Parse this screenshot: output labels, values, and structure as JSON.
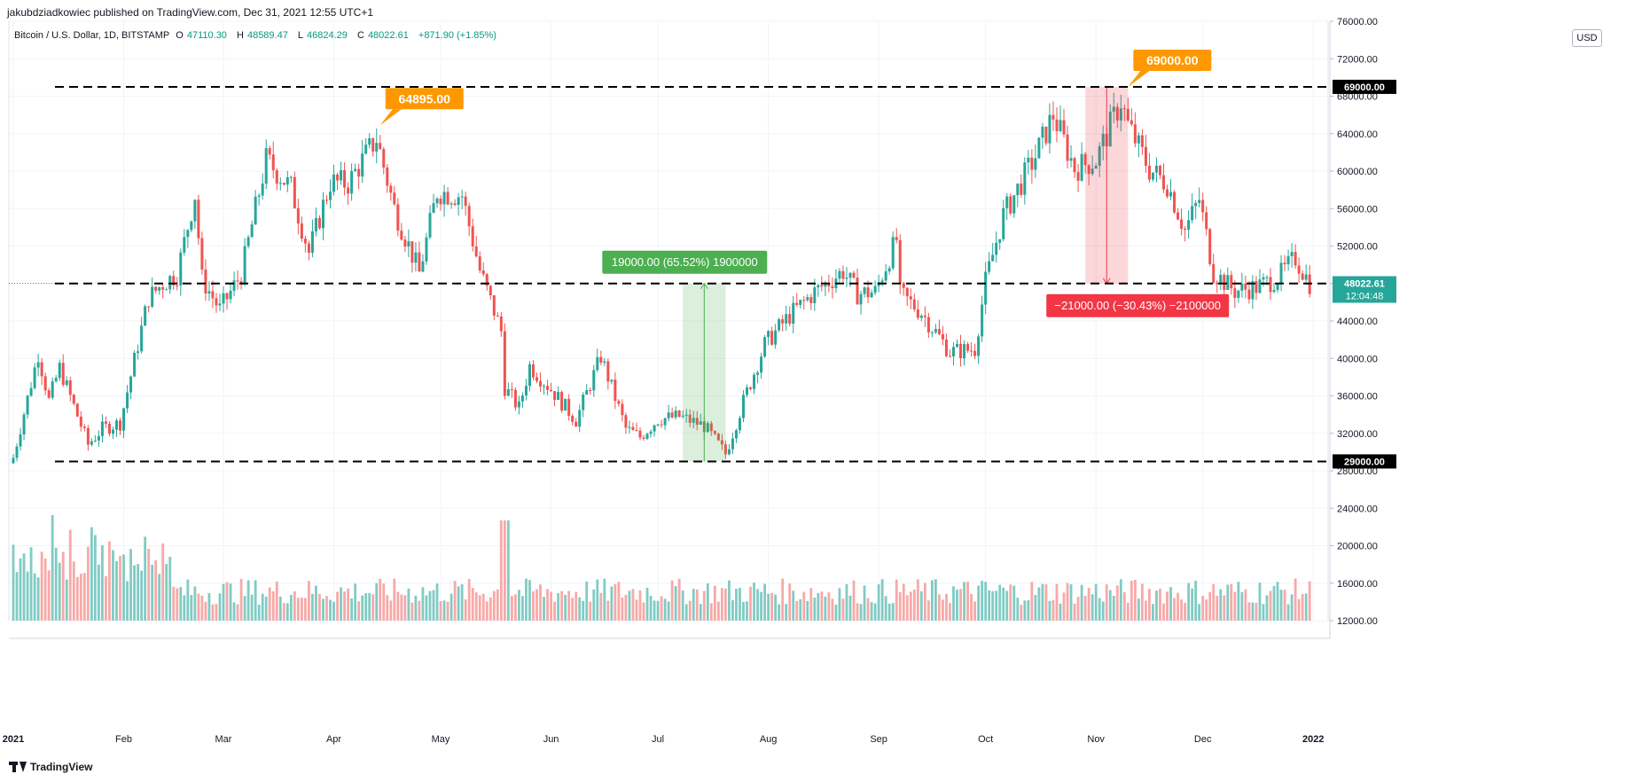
{
  "header": {
    "publisher": "jakubdziadkowiec published on TradingView.com, Dec 31, 2021 12:55 UTC+1"
  },
  "legend": {
    "symbol": "Bitcoin / U.S. Dollar, 1D, BITSTAMP",
    "o_label": "O",
    "o": "47110.30",
    "h_label": "H",
    "h": "48589.47",
    "l_label": "L",
    "l": "46824.29",
    "c_label": "C",
    "c": "48022.61",
    "change": "+871.90 (+1.85%)"
  },
  "currency_button": "USD",
  "footer": {
    "brand": "TradingView"
  },
  "colors": {
    "up": "#26a69a",
    "down": "#ef5350",
    "grid": "#f0f3fa",
    "label_orange": "#ff9800",
    "label_green": "#4caf50",
    "label_red": "#f23645"
  },
  "chart_data": {
    "type": "candlestick",
    "title": "Bitcoin / U.S. Dollar, 1D, BITSTAMP",
    "x_range": [
      "2021-01-01",
      "2021-12-31"
    ],
    "y_range": [
      12000,
      76000
    ],
    "y_axis_ticks": [
      12000,
      16000,
      20000,
      24000,
      28000,
      32000,
      36000,
      40000,
      44000,
      48000,
      52000,
      56000,
      60000,
      64000,
      68000,
      72000,
      76000
    ],
    "x_axis_labels": [
      {
        "date": "2021-01-01",
        "label": "2021"
      },
      {
        "date": "2021-02-01",
        "label": "Feb"
      },
      {
        "date": "2021-03-01",
        "label": "Mar"
      },
      {
        "date": "2021-04-01",
        "label": "Apr"
      },
      {
        "date": "2021-05-01",
        "label": "May"
      },
      {
        "date": "2021-06-01",
        "label": "Jun"
      },
      {
        "date": "2021-07-01",
        "label": "Jul"
      },
      {
        "date": "2021-08-01",
        "label": "Aug"
      },
      {
        "date": "2021-09-01",
        "label": "Sep"
      },
      {
        "date": "2021-10-01",
        "label": "Oct"
      },
      {
        "date": "2021-11-01",
        "label": "Nov"
      },
      {
        "date": "2021-12-01",
        "label": "Dec"
      },
      {
        "date": "2022-01-01",
        "label": "2022"
      }
    ],
    "approx_close_path": [
      [
        "2021-01-01",
        29400
      ],
      [
        "2021-01-08",
        40500
      ],
      [
        "2021-01-11",
        35500
      ],
      [
        "2021-01-14",
        39000
      ],
      [
        "2021-01-22",
        30800
      ],
      [
        "2021-01-26",
        32500
      ],
      [
        "2021-01-31",
        33100
      ],
      [
        "2021-02-08",
        46500
      ],
      [
        "2021-02-12",
        48000
      ],
      [
        "2021-02-16",
        49000
      ],
      [
        "2021-02-21",
        57500
      ],
      [
        "2021-02-23",
        48500
      ],
      [
        "2021-02-28",
        45200
      ],
      [
        "2021-03-06",
        49000
      ],
      [
        "2021-03-13",
        61200
      ],
      [
        "2021-03-20",
        58200
      ],
      [
        "2021-03-25",
        51300
      ],
      [
        "2021-03-31",
        58800
      ],
      [
        "2021-04-05",
        58700
      ],
      [
        "2021-04-13",
        63500
      ],
      [
        "2021-04-18",
        56000
      ],
      [
        "2021-04-25",
        49100
      ],
      [
        "2021-04-30",
        57800
      ],
      [
        "2021-05-07",
        57400
      ],
      [
        "2021-05-12",
        49400
      ],
      [
        "2021-05-18",
        42900
      ],
      [
        "2021-05-19",
        36900
      ],
      [
        "2021-05-23",
        34700
      ],
      [
        "2021-05-26",
        39200
      ],
      [
        "2021-06-01",
        36700
      ],
      [
        "2021-06-08",
        33400
      ],
      [
        "2021-06-15",
        40200
      ],
      [
        "2021-06-22",
        32500
      ],
      [
        "2021-06-26",
        31600
      ],
      [
        "2021-07-01",
        33500
      ],
      [
        "2021-07-07",
        33800
      ],
      [
        "2021-07-14",
        32800
      ],
      [
        "2021-07-20",
        29800
      ],
      [
        "2021-07-25",
        35400
      ],
      [
        "2021-07-31",
        41500
      ],
      [
        "2021-08-07",
        44600
      ],
      [
        "2021-08-14",
        47100
      ],
      [
        "2021-08-22",
        49300
      ],
      [
        "2021-08-26",
        46900
      ],
      [
        "2021-08-31",
        47100
      ],
      [
        "2021-09-06",
        52700
      ],
      [
        "2021-09-07",
        46900
      ],
      [
        "2021-09-13",
        44900
      ],
      [
        "2021-09-21",
        40700
      ],
      [
        "2021-09-28",
        41000
      ],
      [
        "2021-10-01",
        48200
      ],
      [
        "2021-10-06",
        55300
      ],
      [
        "2021-10-15",
        61600
      ],
      [
        "2021-10-20",
        66000
      ],
      [
        "2021-10-26",
        60300
      ],
      [
        "2021-11-01",
        61200
      ],
      [
        "2021-11-08",
        67500
      ],
      [
        "2021-11-10",
        64900
      ],
      [
        "2021-11-16",
        60200
      ],
      [
        "2021-11-21",
        58700
      ],
      [
        "2021-11-26",
        53700
      ],
      [
        "2021-11-30",
        57000
      ],
      [
        "2021-12-04",
        49200
      ],
      [
        "2021-12-10",
        47200
      ],
      [
        "2021-12-16",
        47600
      ],
      [
        "2021-12-22",
        48600
      ],
      [
        "2021-12-27",
        50700
      ],
      [
        "2021-12-31",
        48022.61
      ]
    ],
    "volume_note": "volume histogram in lower panel, bars colored by candle direction",
    "horizontal_levels": [
      {
        "price": 69000,
        "label": "69000.00"
      },
      {
        "price": 48000,
        "label": "48000.00"
      },
      {
        "price": 29000,
        "label": "29000.00"
      }
    ],
    "price_labels": [
      {
        "date": "2021-04-14",
        "price": 64895.0,
        "label": "64895.00"
      },
      {
        "date": "2021-11-10",
        "price": 69000.0,
        "label": "69000.00"
      }
    ],
    "measurements": [
      {
        "from_date": "2021-07-08",
        "to_date": "2021-07-20",
        "from_price": 29000,
        "to_price": 48000,
        "label": "19000.00 (65.52%) 1900000",
        "direction": "up"
      },
      {
        "from_date": "2021-10-29",
        "to_date": "2021-11-10",
        "from_price": 69000,
        "to_price": 48000,
        "label": "−21000.00 (−30.43%) −2100000",
        "direction": "down"
      }
    ],
    "last_price": {
      "value": "48022.61",
      "countdown": "12:04:48"
    }
  }
}
